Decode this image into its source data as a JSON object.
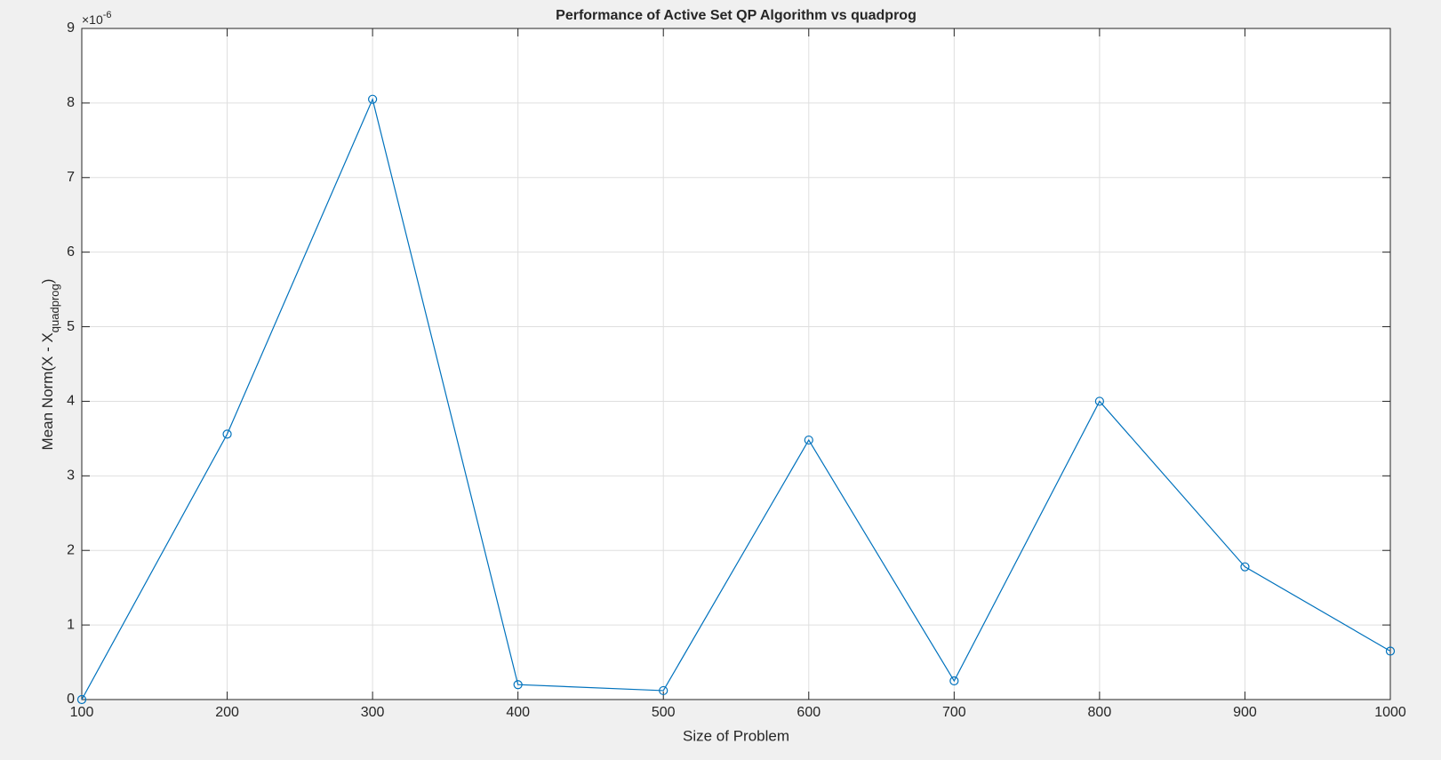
{
  "chart_data": {
    "type": "line",
    "title": "Performance of Active Set QP Algorithm vs quadprog",
    "x_label": "Size of Problem",
    "y_label": {
      "text": "Mean Norm(X - X",
      "subscript": "quadprog",
      "suffix": ")"
    },
    "y_exponent": {
      "base": "×10",
      "power": "-6"
    },
    "x": [
      100,
      200,
      300,
      400,
      500,
      600,
      700,
      800,
      900,
      1000
    ],
    "series": [
      {
        "color": "#0072bd",
        "marker": "circle",
        "values": [
          0,
          3.56,
          8.05,
          0.2,
          0.12,
          3.48,
          0.25,
          4.0,
          1.78,
          0.65
        ]
      }
    ],
    "xlim": [
      100,
      1000
    ],
    "ylim": [
      0,
      9
    ],
    "xticks": [
      100,
      200,
      300,
      400,
      500,
      600,
      700,
      800,
      900,
      1000
    ],
    "yticks": [
      0,
      1,
      2,
      3,
      4,
      5,
      6,
      7,
      8,
      9
    ],
    "grid": true
  }
}
